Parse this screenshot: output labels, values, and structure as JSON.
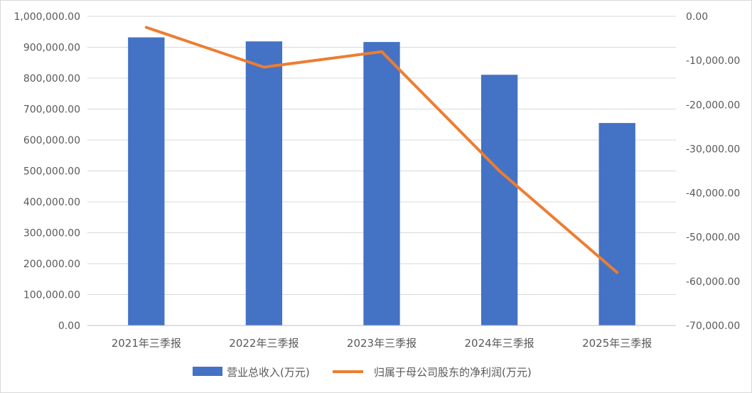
{
  "chart_data": {
    "type": "bar",
    "categories": [
      "2021年三季报",
      "2022年三季报",
      "2023年三季报",
      "2024年三季报",
      "2025年三季报"
    ],
    "series": [
      {
        "name": "营业总收入(万元)",
        "type": "bar",
        "axis": "left",
        "color": "#4472C4",
        "values": [
          932000,
          919000,
          917000,
          811000,
          655000
        ]
      },
      {
        "name": "归属于母公司股东的净利润(万元)",
        "type": "line",
        "axis": "right",
        "color": "#ED7D31",
        "values": [
          -2500,
          -11500,
          -8000,
          -35000,
          -58000
        ]
      }
    ],
    "y_left": {
      "ylim": [
        0,
        1000000
      ],
      "ticks": [
        "0.00",
        "100,000.00",
        "200,000.00",
        "300,000.00",
        "400,000.00",
        "500,000.00",
        "600,000.00",
        "700,000.00",
        "800,000.00",
        "900,000.00",
        "1,000,000.00"
      ]
    },
    "y_right": {
      "ylim": [
        -70000,
        0
      ],
      "ticks": [
        "-70,000.00",
        "-60,000.00",
        "-50,000.00",
        "-40,000.00",
        "-30,000.00",
        "-20,000.00",
        "-10,000.00",
        "0.00"
      ]
    },
    "grid": true,
    "legend_position": "bottom"
  }
}
